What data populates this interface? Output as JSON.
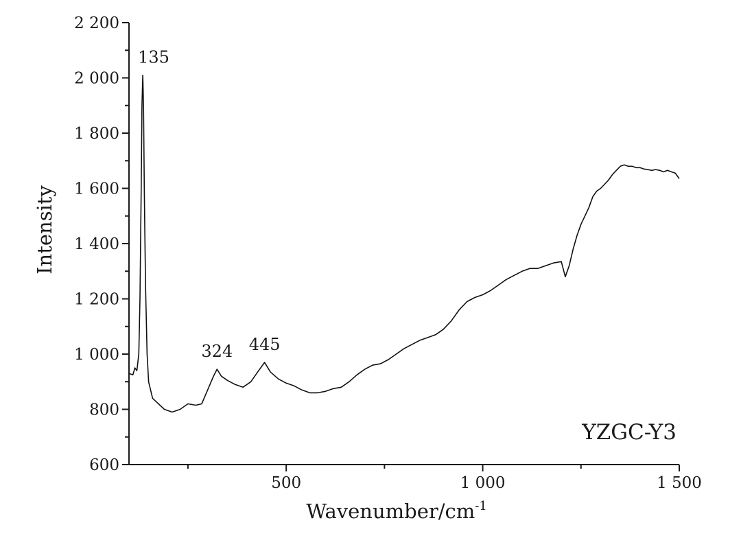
{
  "chart_data": {
    "type": "line",
    "title": "",
    "xlabel": "Wavenumber/cm",
    "xlabel_superscript": "-1",
    "ylabel": "Intensity",
    "xlim": [
      100,
      1500
    ],
    "ylim": [
      600,
      2200
    ],
    "grid": false,
    "legend": "none",
    "line_color": "#111111",
    "x_ticks": [
      {
        "value": 500,
        "label": "500"
      },
      {
        "value": 1000,
        "label": "1 000"
      },
      {
        "value": 1500,
        "label": "1 500"
      }
    ],
    "x_minor_ticks": [
      250,
      750,
      1250
    ],
    "y_ticks": [
      {
        "value": 600,
        "label": "600"
      },
      {
        "value": 800,
        "label": "800"
      },
      {
        "value": 1000,
        "label": "1 000"
      },
      {
        "value": 1200,
        "label": "1 200"
      },
      {
        "value": 1400,
        "label": "1 400"
      },
      {
        "value": 1600,
        "label": "1 600"
      },
      {
        "value": 1800,
        "label": "1 800"
      },
      {
        "value": 2000,
        "label": "2 000"
      },
      {
        "value": 2200,
        "label": "2 200"
      }
    ],
    "y_minor_ticks": [
      700,
      900,
      1100,
      1300,
      1500,
      1700,
      1900,
      2100
    ],
    "series": [
      {
        "values": [
          [
            100,
            930
          ],
          [
            110,
            925
          ],
          [
            115,
            950
          ],
          [
            120,
            940
          ],
          [
            125,
            1000
          ],
          [
            128,
            1200
          ],
          [
            131,
            1600
          ],
          [
            133,
            1900
          ],
          [
            135,
            2010
          ],
          [
            137,
            1900
          ],
          [
            139,
            1600
          ],
          [
            142,
            1250
          ],
          [
            146,
            1000
          ],
          [
            150,
            900
          ],
          [
            160,
            840
          ],
          [
            175,
            820
          ],
          [
            190,
            800
          ],
          [
            210,
            790
          ],
          [
            230,
            800
          ],
          [
            250,
            820
          ],
          [
            270,
            815
          ],
          [
            285,
            820
          ],
          [
            300,
            870
          ],
          [
            315,
            920
          ],
          [
            324,
            945
          ],
          [
            335,
            920
          ],
          [
            350,
            905
          ],
          [
            370,
            890
          ],
          [
            390,
            880
          ],
          [
            410,
            900
          ],
          [
            430,
            940
          ],
          [
            445,
            970
          ],
          [
            460,
            935
          ],
          [
            480,
            910
          ],
          [
            500,
            895
          ],
          [
            520,
            885
          ],
          [
            540,
            870
          ],
          [
            560,
            860
          ],
          [
            580,
            860
          ],
          [
            600,
            865
          ],
          [
            620,
            875
          ],
          [
            640,
            880
          ],
          [
            660,
            900
          ],
          [
            680,
            925
          ],
          [
            700,
            945
          ],
          [
            720,
            960
          ],
          [
            740,
            965
          ],
          [
            760,
            980
          ],
          [
            780,
            1000
          ],
          [
            800,
            1020
          ],
          [
            820,
            1035
          ],
          [
            840,
            1050
          ],
          [
            860,
            1060
          ],
          [
            880,
            1070
          ],
          [
            900,
            1090
          ],
          [
            920,
            1120
          ],
          [
            940,
            1160
          ],
          [
            960,
            1190
          ],
          [
            980,
            1205
          ],
          [
            1000,
            1215
          ],
          [
            1020,
            1230
          ],
          [
            1040,
            1250
          ],
          [
            1060,
            1270
          ],
          [
            1080,
            1285
          ],
          [
            1100,
            1300
          ],
          [
            1120,
            1310
          ],
          [
            1140,
            1310
          ],
          [
            1160,
            1320
          ],
          [
            1180,
            1330
          ],
          [
            1200,
            1335
          ],
          [
            1210,
            1280
          ],
          [
            1220,
            1320
          ],
          [
            1230,
            1380
          ],
          [
            1240,
            1430
          ],
          [
            1250,
            1470
          ],
          [
            1260,
            1500
          ],
          [
            1270,
            1530
          ],
          [
            1280,
            1570
          ],
          [
            1290,
            1590
          ],
          [
            1300,
            1600
          ],
          [
            1310,
            1615
          ],
          [
            1320,
            1630
          ],
          [
            1330,
            1650
          ],
          [
            1340,
            1665
          ],
          [
            1350,
            1680
          ],
          [
            1360,
            1685
          ],
          [
            1370,
            1680
          ],
          [
            1380,
            1680
          ],
          [
            1390,
            1675
          ],
          [
            1400,
            1675
          ],
          [
            1410,
            1670
          ],
          [
            1420,
            1668
          ],
          [
            1430,
            1665
          ],
          [
            1440,
            1668
          ],
          [
            1450,
            1665
          ],
          [
            1460,
            1660
          ],
          [
            1470,
            1665
          ],
          [
            1480,
            1660
          ],
          [
            1490,
            1655
          ],
          [
            1500,
            1635
          ]
        ]
      }
    ],
    "annotations": [
      {
        "x": 135,
        "y": 2010,
        "text": "135"
      },
      {
        "x": 324,
        "y": 945,
        "text": "324"
      },
      {
        "x": 445,
        "y": 970,
        "text": "445"
      }
    ],
    "sample_label": "YZGC-Y3"
  }
}
